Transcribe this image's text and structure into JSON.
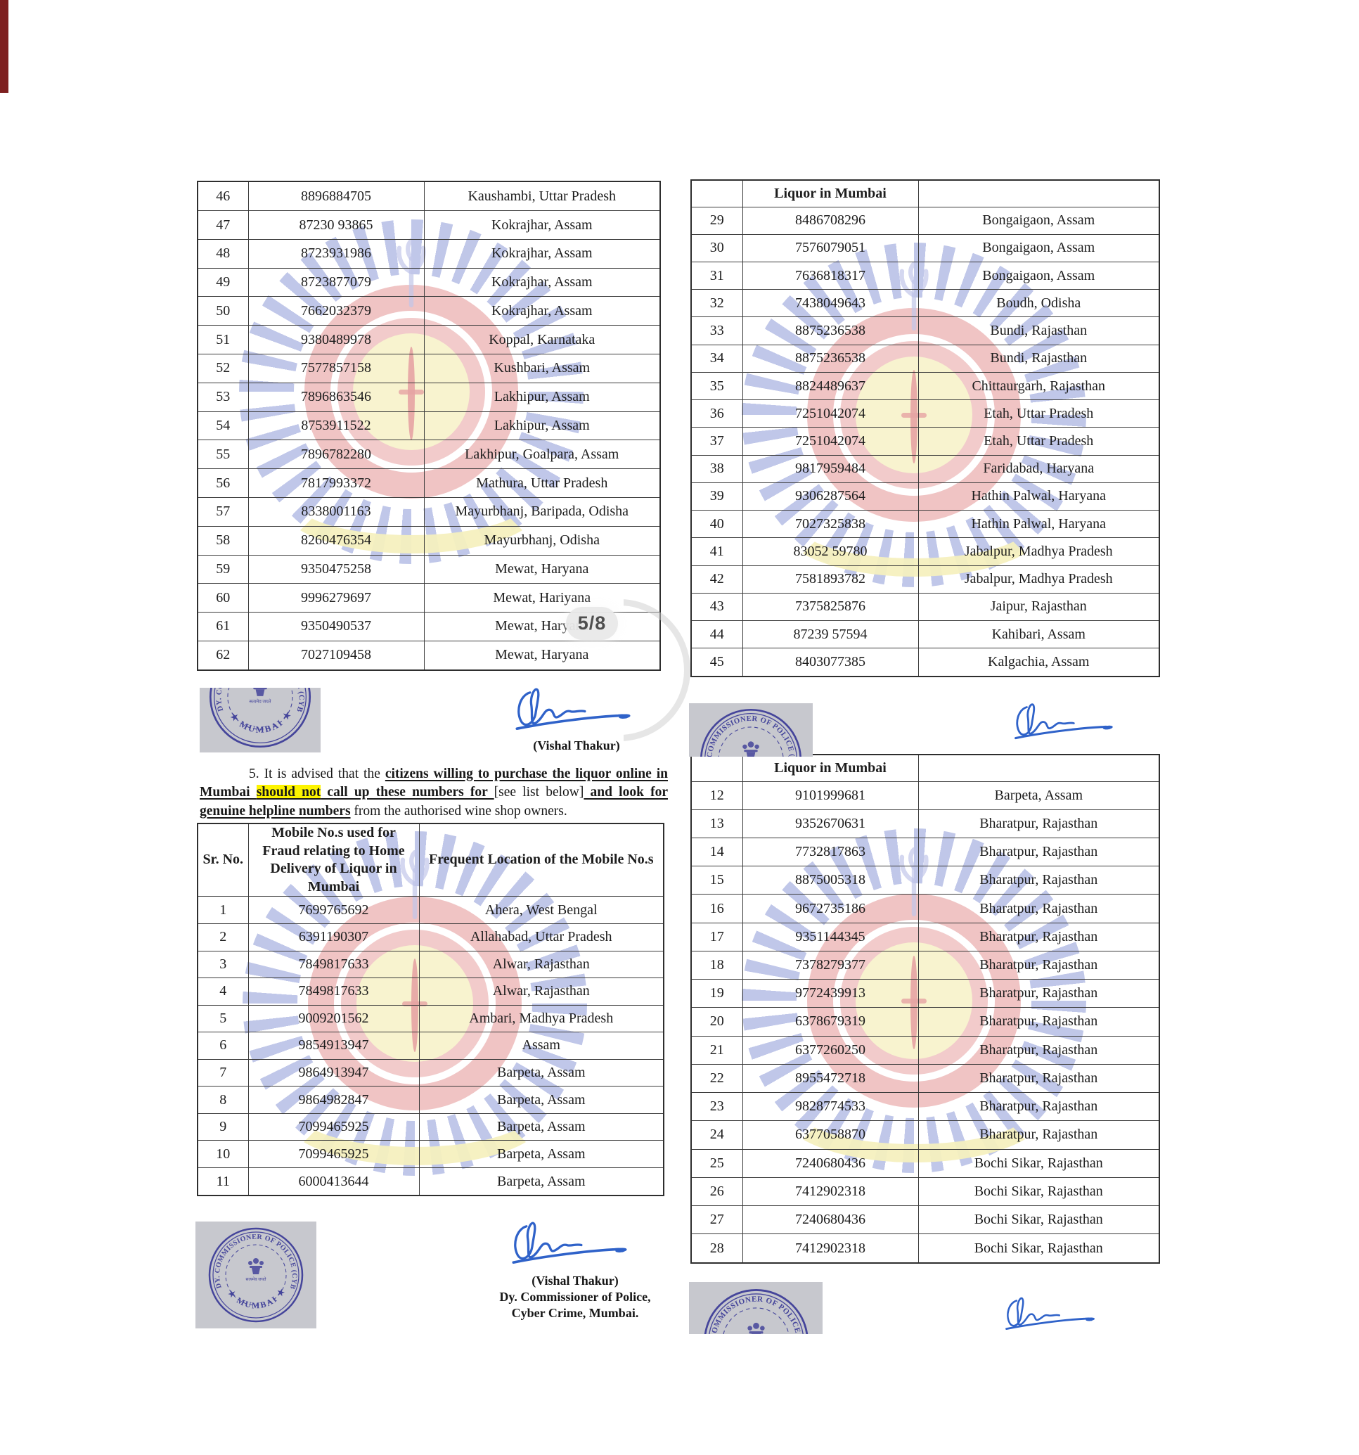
{
  "page_badge": "5/8",
  "stamp": {
    "arc_text": "DY. COMMISSIONER OF POLICE (CYBER)",
    "bottom_text": "★ MUMBAI ★",
    "motto": "सत्यमेव जयते"
  },
  "signatory": {
    "name": "(Vishal Thakur)",
    "line1": "Dy. Commissioner of Police,",
    "line2": "Cyber Crime, Mumbai."
  },
  "advisory": {
    "s1": "5. It is advised that the ",
    "s2": "citizens willing to purchase the liquor online in Mumbai ",
    "s3": "should not",
    "s4": " call up these numbers for ",
    "s5": "[see list below]",
    "s6": " and look for genuine helpline numbers",
    "s7": " from the authorised wine shop owners."
  },
  "tables": {
    "left_top": {
      "rows": [
        [
          "46",
          "8896884705",
          "Kaushambi, Uttar Pradesh"
        ],
        [
          "47",
          "87230 93865",
          "Kokrajhar, Assam"
        ],
        [
          "48",
          "8723931986",
          "Kokrajhar, Assam"
        ],
        [
          "49",
          "8723877079",
          "Kokrajhar, Assam"
        ],
        [
          "50",
          "7662032379",
          "Kokrajhar, Assam"
        ],
        [
          "51",
          "9380489978",
          "Koppal, Karnataka"
        ],
        [
          "52",
          "7577857158",
          "Kushbari, Assam"
        ],
        [
          "53",
          "7896863546",
          "Lakhipur, Assam"
        ],
        [
          "54",
          "8753911522",
          "Lakhipur, Assam"
        ],
        [
          "55",
          "7896782280",
          "Lakhipur, Goalpara, Assam"
        ],
        [
          "56",
          "7817993372",
          "Mathura, Uttar Pradesh"
        ],
        [
          "57",
          "8338001163",
          "Mayurbhanj, Baripada, Odisha"
        ],
        [
          "58",
          "8260476354",
          "Mayurbhanj, Odisha"
        ],
        [
          "59",
          "9350475258",
          "Mewat, Haryana"
        ],
        [
          "60",
          "9996279697",
          "Mewat, Hariyana"
        ],
        [
          "61",
          "9350490537",
          "Mewat, Haryana"
        ],
        [
          "62",
          "7027109458",
          "Mewat, Haryana"
        ]
      ]
    },
    "right_top": {
      "header_label": "Liquor in Mumbai",
      "rows": [
        [
          "29",
          "8486708296",
          "Bongaigaon, Assam"
        ],
        [
          "30",
          "7576079051",
          "Bongaigaon, Assam"
        ],
        [
          "31",
          "7636818317",
          "Bongaigaon, Assam"
        ],
        [
          "32",
          "7438049643",
          "Boudh, Odisha"
        ],
        [
          "33",
          "8875236538",
          "Bundi, Rajasthan"
        ],
        [
          "34",
          "8875236538",
          "Bundi, Rajasthan"
        ],
        [
          "35",
          "8824489637",
          "Chittaurgarh, Rajasthan"
        ],
        [
          "36",
          "7251042074",
          "Etah, Uttar Pradesh"
        ],
        [
          "37",
          "7251042074",
          "Etah, Uttar Pradesh"
        ],
        [
          "38",
          "9817959484",
          "Faridabad, Haryana"
        ],
        [
          "39",
          "9306287564",
          "Hathin Palwal, Haryana"
        ],
        [
          "40",
          "7027325838",
          "Hathin Palwal, Haryana"
        ],
        [
          "41",
          "83052 59780",
          "Jabalpur, Madhya Pradesh"
        ],
        [
          "42",
          "7581893782",
          "Jabalpur, Madhya Pradesh"
        ],
        [
          "43",
          "7375825876",
          "Jaipur, Rajasthan"
        ],
        [
          "44",
          "87239 57594",
          "Kahibari, Assam"
        ],
        [
          "45",
          "8403077385",
          "Kalgachia, Assam"
        ]
      ]
    },
    "left_bottom": {
      "header": {
        "sr": "Sr. No.",
        "mobile": "Mobile No.s used for Fraud relating to Home Delivery of Liquor in Mumbai",
        "location": "Frequent Location of the Mobile No.s"
      },
      "rows": [
        [
          "1",
          "7699765692",
          "Ahera, West Bengal"
        ],
        [
          "2",
          "6391190307",
          "Allahabad, Uttar Pradesh"
        ],
        [
          "3",
          "7849817633",
          "Alwar, Rajasthan"
        ],
        [
          "4",
          "7849817633",
          "Alwar, Rajasthan"
        ],
        [
          "5",
          "9009201562",
          "Ambari, Madhya Pradesh"
        ],
        [
          "6",
          "9854913947",
          "Assam"
        ],
        [
          "7",
          "9864913947",
          "Barpeta, Assam"
        ],
        [
          "8",
          "9864982847",
          "Barpeta, Assam"
        ],
        [
          "9",
          "7099465925",
          "Barpeta, Assam"
        ],
        [
          "10",
          "7099465925",
          "Barpeta, Assam"
        ],
        [
          "11",
          "6000413644",
          "Barpeta, Assam"
        ]
      ]
    },
    "right_bottom": {
      "header_label": "Liquor in Mumbai",
      "rows": [
        [
          "12",
          "9101999681",
          "Barpeta, Assam"
        ],
        [
          "13",
          "9352670631",
          "Bharatpur, Rajasthan"
        ],
        [
          "14",
          "7732817863",
          "Bharatpur, Rajasthan"
        ],
        [
          "15",
          "8875005318",
          "Bharatpur, Rajasthan"
        ],
        [
          "16",
          "9672735186",
          "Bharatpur, Rajasthan"
        ],
        [
          "17",
          "9351144345",
          "Bharatpur, Rajasthan"
        ],
        [
          "18",
          "7378279377",
          "Bharatpur, Rajasthan"
        ],
        [
          "19",
          "9772439913",
          "Bharatpur, Rajasthan"
        ],
        [
          "20",
          "6378679319",
          "Bharatpur, Rajasthan"
        ],
        [
          "21",
          "6377260250",
          "Bharatpur, Rajasthan"
        ],
        [
          "22",
          "8955472718",
          "Bharatpur, Rajasthan"
        ],
        [
          "23",
          "9828774533",
          "Bharatpur, Rajasthan"
        ],
        [
          "24",
          "6377058870",
          "Bharatpur, Rajasthan"
        ],
        [
          "25",
          "7240680436",
          "Bochi Sikar, Rajasthan"
        ],
        [
          "26",
          "7412902318",
          "Bochi Sikar, Rajasthan"
        ],
        [
          "27",
          "7240680436",
          "Bochi Sikar, Rajasthan"
        ],
        [
          "28",
          "7412902318",
          "Bochi Sikar, Rajasthan"
        ]
      ]
    }
  },
  "colors": {
    "stamp_ink": "#45459b",
    "signature_ink": "#2f62c9",
    "highlight": "#fdf400"
  }
}
